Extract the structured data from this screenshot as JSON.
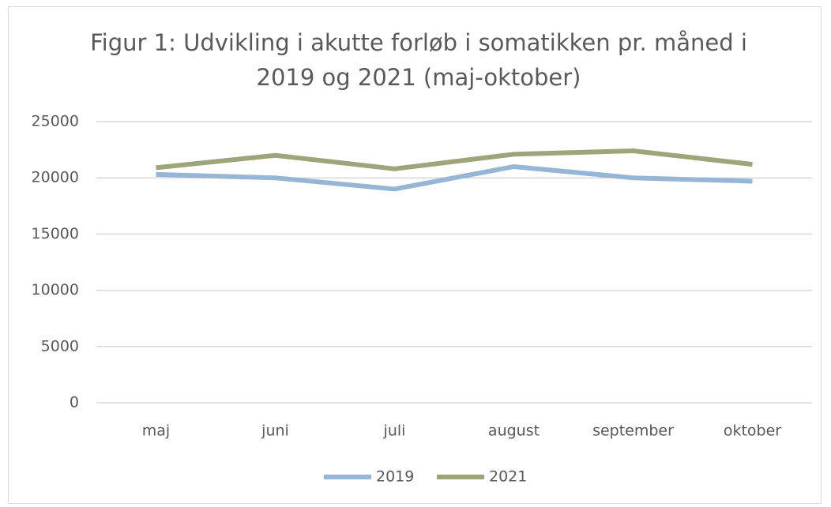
{
  "chart_data": {
    "type": "line",
    "title": "Figur 1: Udvikling i akutte forløb i somatikken pr. måned i 2019 og 2021 (maj-oktober)",
    "categories": [
      "maj",
      "juni",
      "juli",
      "august",
      "september",
      "oktober"
    ],
    "series": [
      {
        "name": "2019",
        "color": "#97b6d6",
        "values": [
          20300,
          20000,
          19000,
          21000,
          20000,
          19700
        ]
      },
      {
        "name": "2021",
        "color": "#9ea57b",
        "values": [
          20900,
          22000,
          20800,
          22100,
          22400,
          21200
        ]
      }
    ],
    "ylim": [
      0,
      25000
    ],
    "yticks": [
      0,
      5000,
      10000,
      15000,
      20000,
      25000
    ],
    "grid": true,
    "legend": "bottom"
  }
}
